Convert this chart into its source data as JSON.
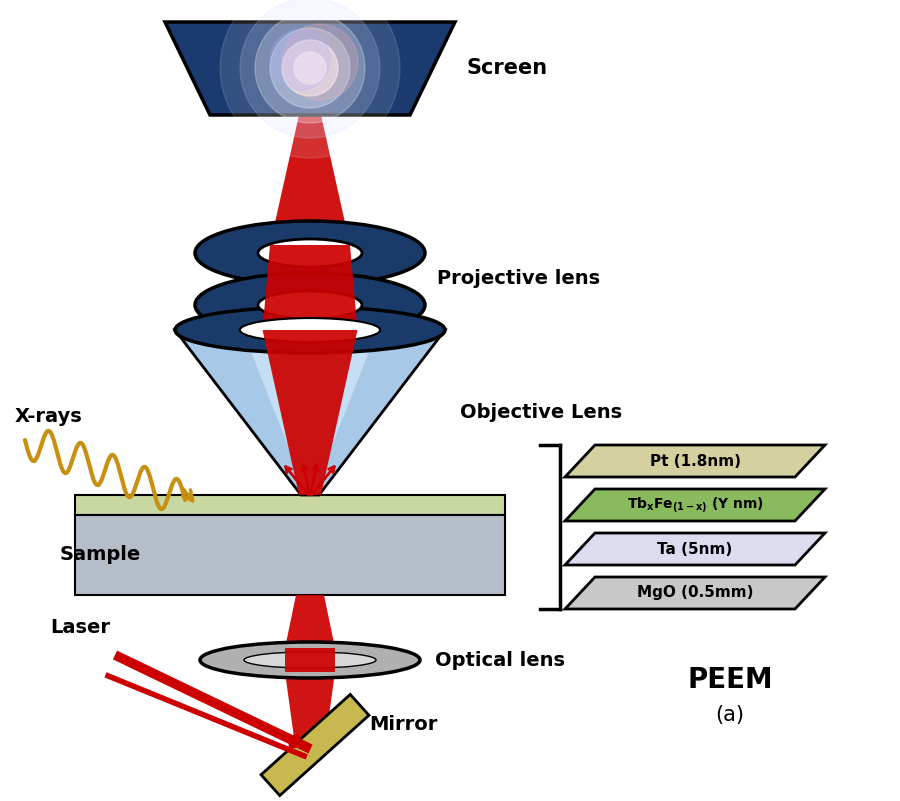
{
  "bg_color": "#ffffff",
  "labels": {
    "screen": "Screen",
    "projective_lens": "Projective lens",
    "objective_lens": "Objective Lens",
    "xrays": "X-rays",
    "sample": "Sample",
    "optical_lens": "Optical lens",
    "laser": "Laser",
    "mirror": "Mirror",
    "peem": "PEEM",
    "peem_sub": "(a)"
  },
  "layer_colors": [
    "#d4d0a0",
    "#8aba5e",
    "#dcdcf0",
    "#c8c8c8"
  ],
  "layer_texts": [
    "Pt (1.8nm)",
    "TbxFe(1-x) (Y nm)",
    "Ta (5nm)",
    "MgO (0.5mm)"
  ],
  "screen_color": "#1a3a70",
  "xray_color": "#c89010",
  "beam_color": "#cc0000",
  "lens_dark": "#1a3a6a",
  "lens_light": "#a8c8e8",
  "lens_lighter": "#d0e8f8",
  "mirror_color": "#c8b850",
  "optical_lens_color": "#a8a8a8"
}
